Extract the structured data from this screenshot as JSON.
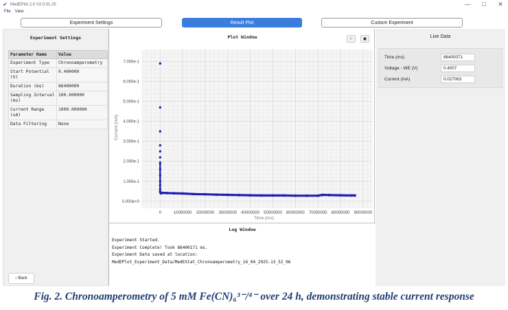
{
  "app": {
    "title": "MedEPlot 2.0 V2.0.01.25",
    "minimize": "—",
    "maximize": "□",
    "close": "✕"
  },
  "menu": {
    "file": "File",
    "view": "View"
  },
  "tabs": [
    {
      "label": "Experiment Settings",
      "active": false
    },
    {
      "label": "Result Plot",
      "active": true
    },
    {
      "label": "Custom Experiment",
      "active": false
    }
  ],
  "settings": {
    "title": "Experiment Settings",
    "headers": [
      "Parameter Name",
      "Value"
    ],
    "rows": [
      [
        "Experiment Type",
        "Chronoamperometry"
      ],
      [
        "Start Potential (V)",
        "0.400000"
      ],
      [
        "Duration (ms)",
        "86400000"
      ],
      [
        "Sampling Interval (ms)",
        "100.000000"
      ],
      [
        "Current Range (uA)",
        "1000.000000"
      ],
      [
        "Data Filtering",
        "None"
      ]
    ],
    "back": "Back"
  },
  "plot": {
    "title": "Plot Window",
    "tool_icons": [
      "grid-icon",
      "save-image-icon"
    ]
  },
  "chart_data": {
    "type": "scatter",
    "title": "",
    "xlabel": "Time (ms)",
    "ylabel": "Current (mA)",
    "xlim": [
      -8000000,
      94000000
    ],
    "ylim": [
      -0.035,
      0.76
    ],
    "xticks": [
      0,
      10000000,
      20000000,
      30000000,
      40000000,
      50000000,
      60000000,
      70000000,
      80000000,
      90000000
    ],
    "xtick_labels": [
      "0",
      "10000000",
      "20000000",
      "30000000",
      "40000000",
      "50000000",
      "60000000",
      "70000000",
      "80000000",
      "90000000"
    ],
    "yticks": [
      0,
      0.1,
      0.2,
      0.3,
      0.4,
      0.5,
      0.6,
      0.7
    ],
    "ytick_labels": [
      "0.000e+0",
      "1.000e-1",
      "2.000e-1",
      "3.000e-1",
      "4.000e-1",
      "5.000e-1",
      "6.000e-1",
      "7.000e-1"
    ],
    "grid": true,
    "color": "#1f1fb5",
    "spikes": [
      {
        "x": 0,
        "y": 0.69
      },
      {
        "x": 0,
        "y": 0.47
      },
      {
        "x": 0,
        "y": 0.35
      },
      {
        "x": 0,
        "y": 0.28
      },
      {
        "x": 0,
        "y": 0.25
      },
      {
        "x": 0,
        "y": 0.22
      },
      {
        "x": 0,
        "y": 0.19
      },
      {
        "x": 0,
        "y": 0.16
      },
      {
        "x": 0,
        "y": 0.13
      },
      {
        "x": 0,
        "y": 0.1
      },
      {
        "x": 0,
        "y": 0.08
      },
      {
        "x": 0,
        "y": 0.06
      }
    ],
    "series": [
      {
        "x": [
          0,
          300000,
          1000000,
          3000000,
          6000000,
          10000000,
          15000000,
          20000000,
          25000000,
          30000000,
          35000000,
          40000000,
          45000000,
          50000000,
          55000000,
          60000000,
          65000000,
          70000000,
          72000000,
          75000000,
          80000000,
          85000000,
          86400000
        ],
        "y": [
          0.048,
          0.04,
          0.042,
          0.041,
          0.04,
          0.039,
          0.036,
          0.035,
          0.033,
          0.032,
          0.031,
          0.03,
          0.029,
          0.029,
          0.029,
          0.028,
          0.028,
          0.028,
          0.032,
          0.031,
          0.03,
          0.029,
          0.029
        ]
      }
    ]
  },
  "log": {
    "title": "Log Window",
    "lines": [
      "Experiment Started.",
      "Experiment Complete! Took 86400171 ms.",
      "Experiment Data saved at location:",
      "MedEPlot_Experiment_Data/MedEStat_Chronoamperometry_16_04_2025-13_52_06"
    ]
  },
  "live": {
    "title": "Live Data",
    "rows": [
      {
        "label": "Time (ms)",
        "value": "86400071"
      },
      {
        "label": "Voltage - WE (V)",
        "value": "0.4007"
      },
      {
        "label": "Current (mA)",
        "value": "0.027063"
      }
    ]
  },
  "caption": "Fig. 2. Chronoamperometry of 5 mM Fe(CN)₆³⁻/⁴⁻ over 24 h, demonstrating stable current response"
}
